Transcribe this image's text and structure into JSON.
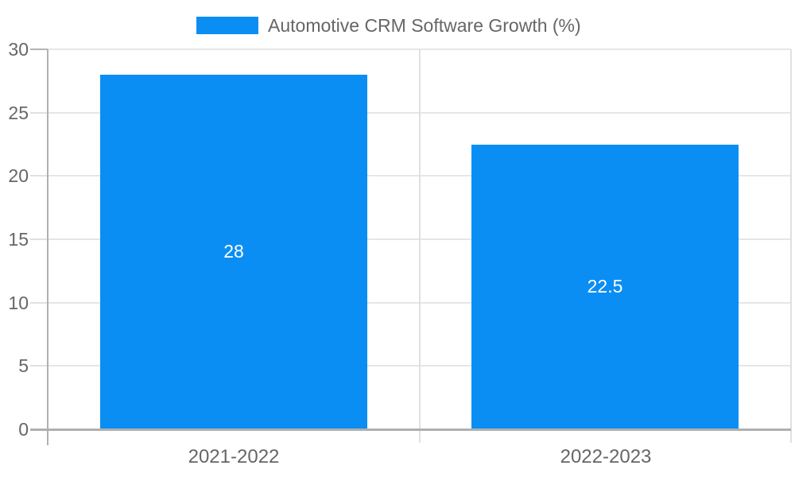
{
  "chart_data": {
    "type": "bar",
    "title": "",
    "legend_position": "top",
    "legend_label": "Automotive CRM Software Growth (%)",
    "categories": [
      "2021-2022",
      "2022-2023"
    ],
    "series": [
      {
        "name": "Automotive CRM Software Growth (%)",
        "values": [
          28,
          22.5
        ],
        "value_labels": [
          "28",
          "22.5"
        ],
        "color": "#0a8ef4"
      }
    ],
    "ylim": [
      0,
      30
    ],
    "yticks": [
      0,
      5,
      10,
      15,
      20,
      25,
      30
    ],
    "grid": true,
    "bar_label_color": "#ffffff"
  },
  "colors": {
    "background": "#ffffff",
    "bar": "#0a8ef4",
    "axis_text": "#666666",
    "gridline": "#e6e6e6",
    "tick_minor": "#e0e0e0",
    "tick_major": "#b3b3b3",
    "axis_line": "#b0b0b0",
    "bar_label": "#ffffff"
  }
}
